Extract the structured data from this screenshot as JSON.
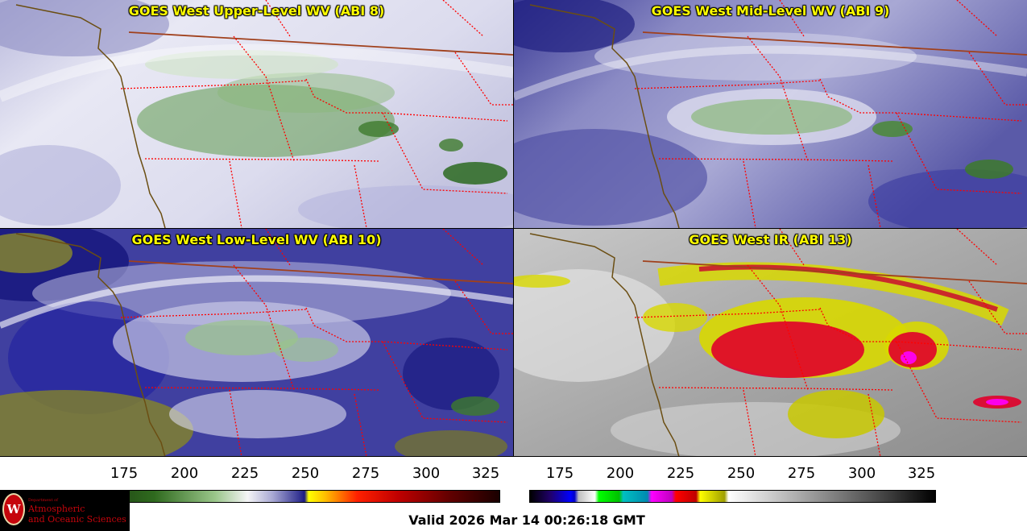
{
  "panels": {
    "upper": {
      "title": "GOES West Upper-Level WV (ABI 8)"
    },
    "mid": {
      "title": "GOES West Mid-Level WV (ABI 9)"
    },
    "low": {
      "title": "GOES West Low-Level WV (ABI 10)"
    },
    "ir": {
      "title": "GOES West IR (ABI 13)"
    }
  },
  "colorbars": {
    "wv": {
      "ticks": [
        "175",
        "200",
        "225",
        "250",
        "275",
        "300",
        "325"
      ]
    },
    "ir": {
      "ticks": [
        "175",
        "200",
        "225",
        "250",
        "275",
        "300",
        "325"
      ]
    }
  },
  "logo": {
    "line1": "Department of",
    "line2": "Atmospheric",
    "line3": "and Oceanic Sciences",
    "seal_letter": "W"
  },
  "valid_time": "Valid 2026 Mar 14 00:26:18 GMT",
  "colors": {
    "title": "#ffff00",
    "coastline": "#6b4e12",
    "international_border": "#a0401c",
    "state_border": "#ff0000"
  }
}
